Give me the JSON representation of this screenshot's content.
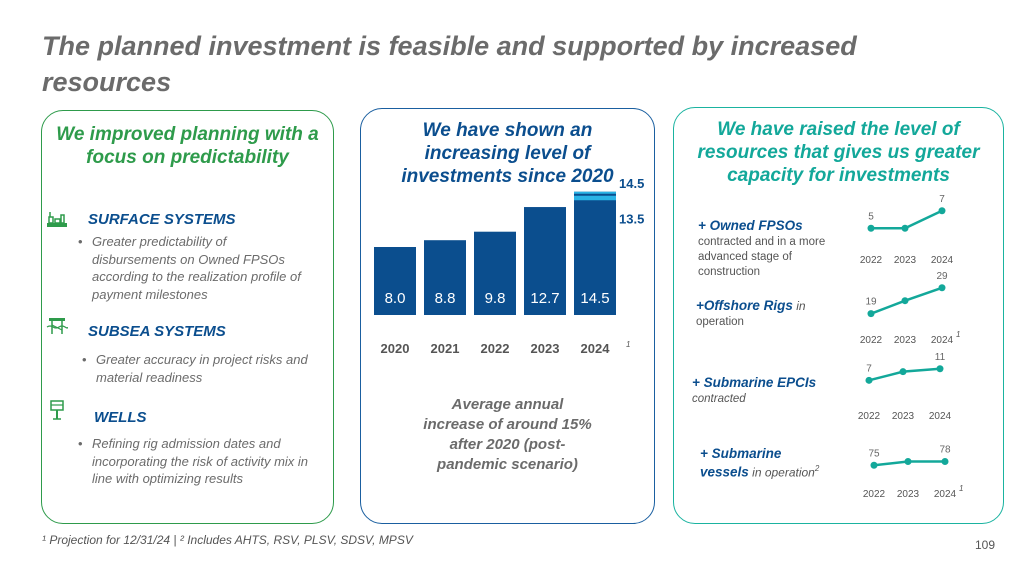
{
  "title": "The planned investment is feasible and supported by increased resources",
  "left_panel": {
    "heading": "We improved planning with a focus on predictability",
    "sections": [
      {
        "title": "SURFACE SYSTEMS",
        "icon": "vessel-icon",
        "bullet": "Greater predictability of disbursements on Owned FPSOs according to the realization profile of payment milestones"
      },
      {
        "title": "SUBSEA SYSTEMS",
        "icon": "subsea-platform-icon",
        "bullet": "Greater accuracy in project risks and material readiness"
      },
      {
        "title": "WELLS",
        "icon": "drilling-rig-icon",
        "bullet": "Refining rig admission dates and incorporating the risk of activity mix in line with optimizing results"
      }
    ]
  },
  "middle_panel": {
    "heading": "We have shown an increasing level of investments since 2020",
    "chart_note": "Average annual increase of around 15% after 2020 (post-pandemic scenario)",
    "footnote_mark": "1",
    "colors": {
      "bar": "#0b4e8e",
      "highlight": "#2ab3e6",
      "range_label": "#0b4e8e"
    }
  },
  "chart_data": [
    {
      "type": "bar",
      "title": "We have shown an increasing level of investments since 2020",
      "categories": [
        "2020",
        "2021",
        "2022",
        "2023",
        "2024"
      ],
      "values": [
        8.0,
        8.8,
        9.8,
        12.7,
        14.5
      ],
      "value_labels": [
        "8.0",
        "8.8",
        "9.8",
        "12.7",
        "14.5"
      ],
      "range_2024": {
        "low": 13.5,
        "high": 14.5,
        "low_label": "13.5",
        "high_label": "14.5"
      },
      "xlabel": "",
      "ylabel": "",
      "ylim": [
        0,
        16
      ]
    },
    {
      "type": "line",
      "title": "+ Owned FPSOs",
      "x": [
        "2022",
        "2023",
        "2024"
      ],
      "values": [
        5,
        5,
        7
      ],
      "labels": [
        "5",
        "",
        "7"
      ],
      "ylim": [
        4,
        8
      ]
    },
    {
      "type": "line",
      "title": "+Offshore Rigs in operation",
      "x": [
        "2022",
        "2023",
        "2024"
      ],
      "values": [
        19,
        24,
        29
      ],
      "labels": [
        "19",
        "",
        "29"
      ],
      "ylim": [
        15,
        32
      ],
      "footnote": "1"
    },
    {
      "type": "line",
      "title": "+ Submarine EPCIs contracted",
      "x": [
        "2022",
        "2023",
        "2024"
      ],
      "values": [
        7,
        10,
        11
      ],
      "labels": [
        "7",
        "",
        "11"
      ],
      "ylim": [
        4,
        13
      ]
    },
    {
      "type": "line",
      "title": "+ Submarine vessels in operation",
      "x": [
        "2022",
        "2023",
        "2024"
      ],
      "values": [
        75,
        78,
        78
      ],
      "labels": [
        "75",
        "",
        "78"
      ],
      "ylim": [
        72,
        80
      ],
      "footnote": "1"
    }
  ],
  "right_panel": {
    "heading": "We have raised the level of resources that gives us greater capacity for investments",
    "metrics": [
      {
        "title": "+ Owned FPSOs",
        "sub": "",
        "desc": "contracted and in a more advanced stage of construction"
      },
      {
        "title": "+Offshore Rigs",
        "sub": " in",
        "desc": "operation"
      },
      {
        "title": "+ Submarine EPCIs",
        "sub": "",
        "desc": "contracted"
      },
      {
        "title": "+ Submarine",
        "sub": "",
        "desc": "vessels",
        "desc_sub": " in operation",
        "desc_sup": "2"
      }
    ],
    "line_color": "#13a89a"
  },
  "footnote": "¹ Projection for 12/31/24 | ² Includes AHTS, RSV, PLSV, SDSV, MPSV",
  "page_number": "109"
}
